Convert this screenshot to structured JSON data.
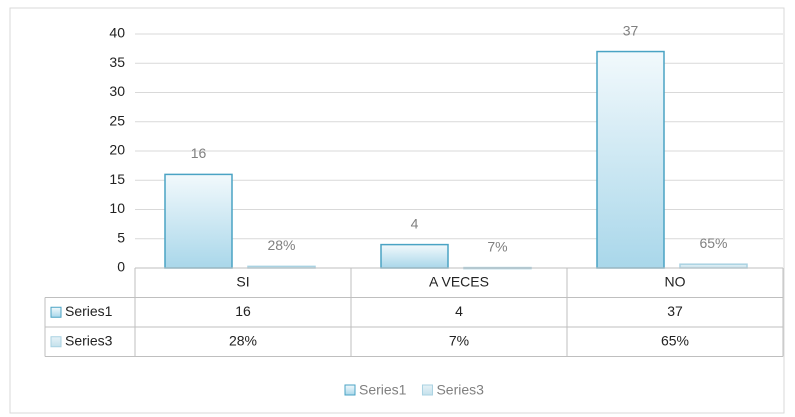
{
  "chart_data": {
    "type": "bar",
    "categories": [
      "SI",
      "A VECES",
      "NO"
    ],
    "series": [
      {
        "name": "Series1",
        "color": "#4aa3c4",
        "values": [
          16,
          4,
          37
        ],
        "value_labels": [
          "16",
          "4",
          "37"
        ]
      },
      {
        "name": "Series3",
        "color": "#a9d2e2",
        "values": [
          0.28,
          0.07,
          0.65
        ],
        "value_labels": [
          "28%",
          "7%",
          "65%"
        ]
      }
    ],
    "ylim": [
      0,
      40
    ],
    "yticks": [
      0,
      5,
      10,
      15,
      20,
      25,
      30,
      35,
      40
    ],
    "grid": true,
    "legend": "bottom",
    "data_table": true
  }
}
